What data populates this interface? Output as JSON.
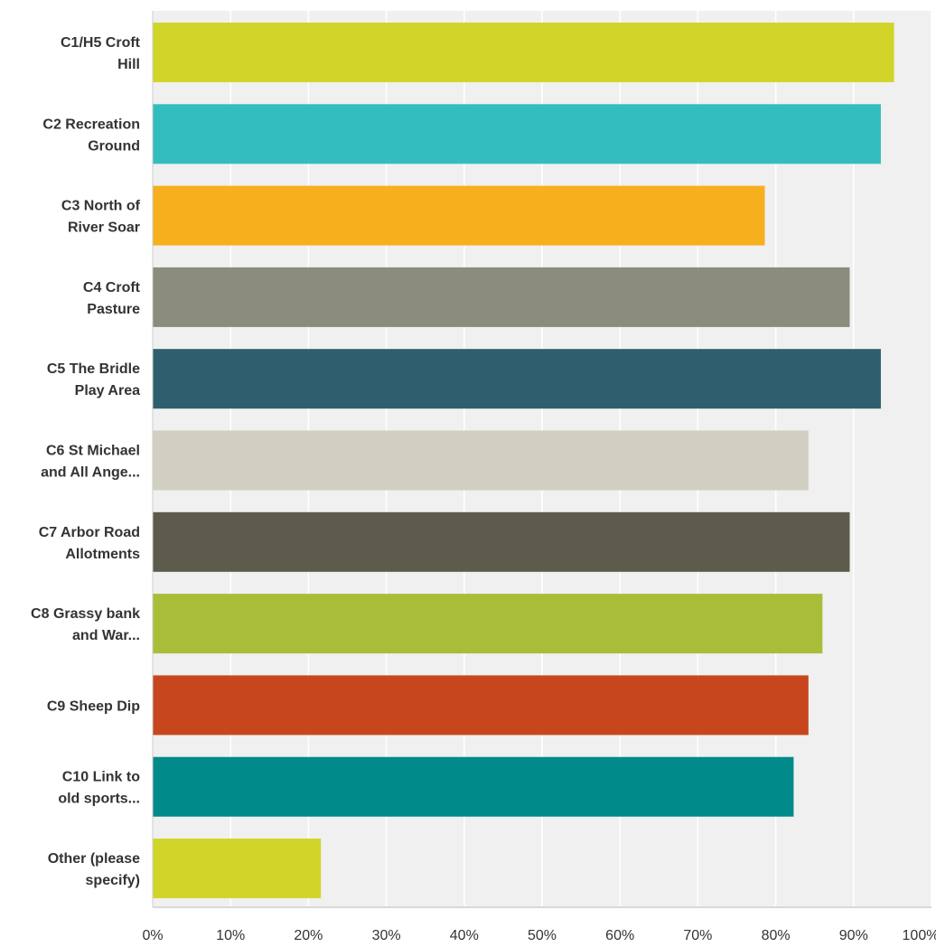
{
  "chart_data": {
    "type": "bar",
    "orientation": "horizontal",
    "title": "",
    "xlabel": "",
    "ylabel": "",
    "categories": [
      [
        "C1/H5 Croft",
        "Hill"
      ],
      [
        "C2 Recreation",
        "Ground"
      ],
      [
        "C3 North of",
        "River Soar"
      ],
      [
        "C4 Croft",
        "Pasture"
      ],
      [
        "C5 The Bridle",
        "Play Area"
      ],
      [
        "C6 St Michael",
        "and All Ange..."
      ],
      [
        "C7 Arbor Road",
        "Allotments"
      ],
      [
        "C8 Grassy bank",
        "and War..."
      ],
      [
        "C9 Sheep Dip"
      ],
      [
        "C10 Link to",
        "old sports..."
      ],
      [
        "Other (please",
        "specify)"
      ]
    ],
    "values": [
      95.2,
      93.5,
      78.6,
      89.5,
      93.5,
      84.2,
      89.5,
      86.0,
      84.2,
      82.3,
      21.6
    ],
    "colors": [
      "#d1d52a",
      "#33bdbe",
      "#f6b01e",
      "#8b8c7b",
      "#2f5f6e",
      "#d0cfc1",
      "#5c5b4c",
      "#a9bd38",
      "#c7461d",
      "#008a8a",
      "#d1d52a"
    ],
    "xlim": [
      0,
      100
    ],
    "x_ticks": [
      "0%",
      "10%",
      "20%",
      "30%",
      "40%",
      "50%",
      "60%",
      "70%",
      "80%",
      "90%",
      "100%"
    ],
    "grid": true,
    "legend": "none"
  }
}
